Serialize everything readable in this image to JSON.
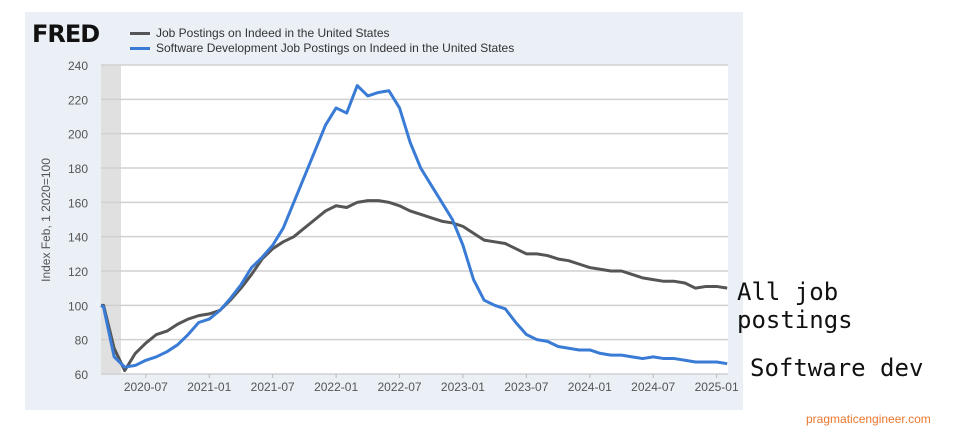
{
  "chart_data": {
    "type": "line",
    "logo": "FRED",
    "ylabel": "Index Feb, 1 2020=100",
    "ylim": [
      60,
      240
    ],
    "yticks": [
      60,
      80,
      100,
      120,
      140,
      160,
      180,
      200,
      220,
      240
    ],
    "xticks": [
      "2020-07",
      "2021-01",
      "2021-07",
      "2022-01",
      "2022-07",
      "2023-01",
      "2023-07",
      "2024-01",
      "2024-07",
      "2025-01"
    ],
    "x_start": "2020-02",
    "x_unit": "months since 2020-02",
    "recession": [
      "2020-02",
      "2020-04"
    ],
    "series": [
      {
        "name": "Job Postings on Indeed in the United States",
        "color": "#555555",
        "values": [
          100,
          100,
          75,
          62,
          72,
          78,
          83,
          85,
          89,
          92,
          94,
          95,
          97,
          103,
          110,
          118,
          127,
          133,
          137,
          140,
          145,
          150,
          155,
          158,
          157,
          160,
          161,
          161,
          160,
          158,
          155,
          153,
          151,
          149,
          148,
          146,
          142,
          138,
          137,
          136,
          133,
          130,
          130,
          129,
          127,
          126,
          124,
          122,
          121,
          120,
          120,
          118,
          116,
          115,
          114,
          114,
          113,
          110,
          111,
          111,
          110
        ]
      },
      {
        "name": "Software Development Job Postings on Indeed in the United States",
        "color": "#3a7bd5",
        "values": [
          100,
          99,
          70,
          64,
          65,
          68,
          70,
          73,
          77,
          83,
          90,
          92,
          97,
          104,
          112,
          122,
          128,
          135,
          145,
          160,
          175,
          190,
          205,
          215,
          212,
          228,
          222,
          224,
          225,
          215,
          195,
          180,
          170,
          160,
          150,
          135,
          115,
          103,
          100,
          98,
          90,
          83,
          80,
          79,
          76,
          75,
          74,
          74,
          72,
          71,
          71,
          70,
          69,
          70,
          69,
          69,
          68,
          67,
          67,
          67,
          66
        ]
      }
    ]
  },
  "annotations": {
    "all": "All job postings",
    "software": "Software dev",
    "site": "pragmaticengineer.com"
  }
}
